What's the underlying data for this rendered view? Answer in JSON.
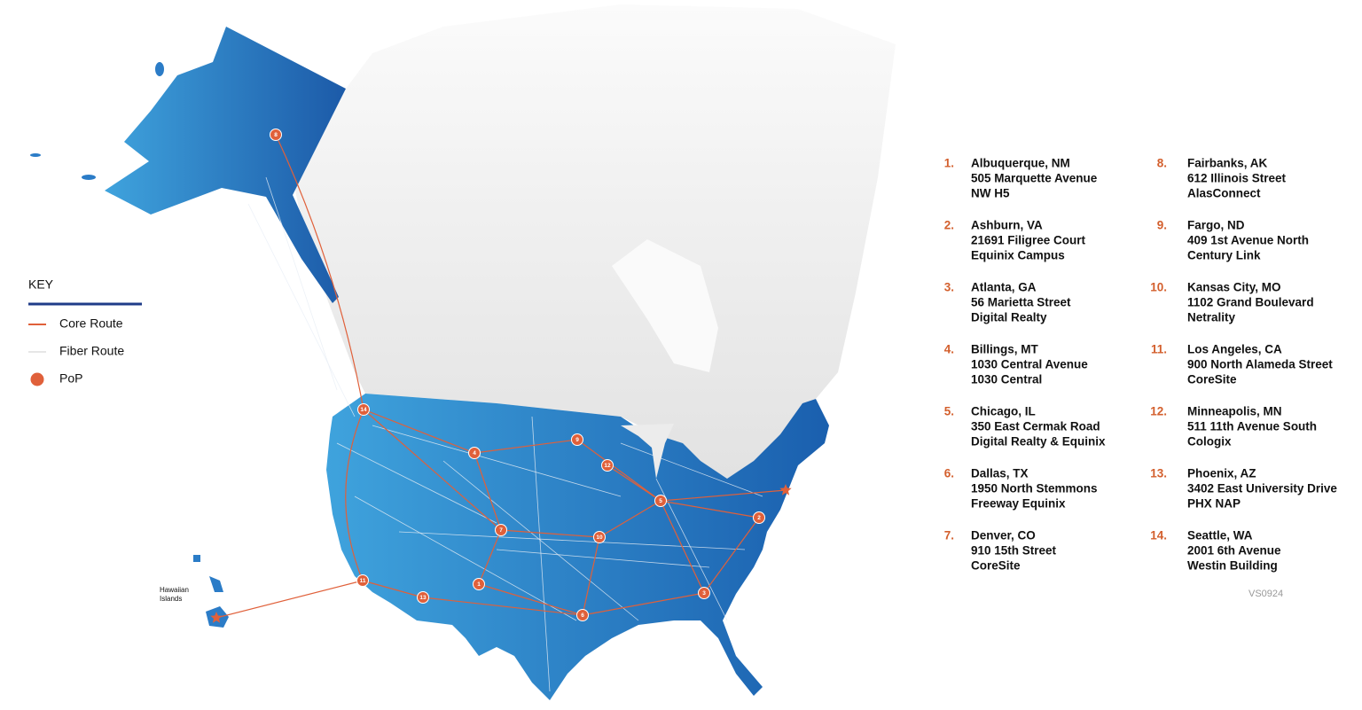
{
  "key": {
    "title": "KEY",
    "items": [
      {
        "label": "Core Route"
      },
      {
        "label": "Fiber Route"
      },
      {
        "label": "PoP"
      }
    ]
  },
  "map": {
    "region_label": [
      "Hawaiian",
      "Islands"
    ],
    "markers": [
      "8",
      "14",
      "4",
      "9",
      "12",
      "5",
      "2",
      "7",
      "10",
      "1",
      "11",
      "13",
      "6",
      "3"
    ]
  },
  "locations": [
    {
      "number": "1.",
      "lines": [
        "Albuquerque, NM",
        "505 Marquette Avenue",
        "NW H5"
      ]
    },
    {
      "number": "2.",
      "lines": [
        "Ashburn, VA",
        "21691 Filigree Court",
        "Equinix Campus"
      ]
    },
    {
      "number": "3.",
      "lines": [
        "Atlanta, GA",
        "56 Marietta Street",
        "Digital Realty"
      ]
    },
    {
      "number": "4.",
      "lines": [
        "Billings, MT",
        "1030 Central Avenue",
        "1030 Central"
      ]
    },
    {
      "number": "5.",
      "lines": [
        "Chicago, IL",
        "350 East Cermak Road",
        "Digital Realty & Equinix"
      ]
    },
    {
      "number": "6.",
      "lines": [
        "Dallas, TX",
        "1950 North Stemmons",
        "Freeway Equinix"
      ]
    },
    {
      "number": "7.",
      "lines": [
        "Denver, CO",
        "910 15th Street",
        "CoreSite"
      ]
    },
    {
      "number": "8.",
      "lines": [
        "Fairbanks, AK",
        "612 Illinois Street",
        "AlasConnect"
      ]
    },
    {
      "number": "9.",
      "lines": [
        "Fargo, ND",
        "409 1st Avenue North",
        "Century Link"
      ]
    },
    {
      "number": "10.",
      "lines": [
        "Kansas City, MO",
        "1102 Grand Boulevard",
        "Netrality"
      ]
    },
    {
      "number": "11.",
      "lines": [
        "Los Angeles, CA",
        "900 North Alameda Street",
        "CoreSite"
      ]
    },
    {
      "number": "12.",
      "lines": [
        "Minneapolis, MN",
        "511 11th Avenue South",
        "Cologix"
      ]
    },
    {
      "number": "13.",
      "lines": [
        "Phoenix, AZ",
        "3402 East University Drive",
        "PHX NAP"
      ]
    },
    {
      "number": "14.",
      "lines": [
        "Seattle, WA",
        "2001 6th Avenue",
        "Westin Building"
      ]
    }
  ],
  "version": "VS0924"
}
